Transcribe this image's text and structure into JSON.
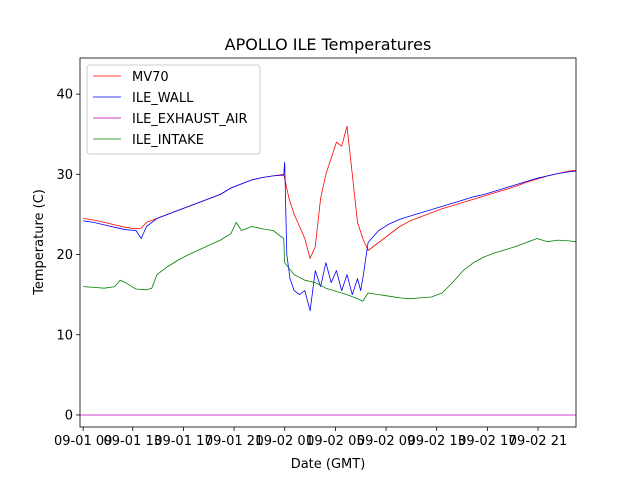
{
  "chart_data": {
    "type": "line",
    "title": "APOLLO ILE Temperatures",
    "xlabel": "Date (GMT)",
    "ylabel": "Temperature (C)",
    "ylim": [
      -1.5,
      44.5
    ],
    "xlim": [
      -0.3,
      46.7
    ],
    "yticks": [
      0,
      10,
      20,
      30,
      40
    ],
    "xticks": [
      {
        "pos": 0,
        "label": "09-01 09"
      },
      {
        "pos": 4.7,
        "label": "09-01 13"
      },
      {
        "pos": 9.5,
        "label": "09-01 17"
      },
      {
        "pos": 14.3,
        "label": "09-01 21"
      },
      {
        "pos": 19.1,
        "label": "09-02 01"
      },
      {
        "pos": 23.9,
        "label": "09-02 05"
      },
      {
        "pos": 28.7,
        "label": "09-02 09"
      },
      {
        "pos": 33.5,
        "label": "09-02 13"
      },
      {
        "pos": 38.3,
        "label": "09-02 17"
      },
      {
        "pos": 43.1,
        "label": "09-02 21"
      }
    ],
    "legend_position": "top-left",
    "x_unit": "hours since 09-01 09:00",
    "series": [
      {
        "name": "MV70",
        "color": "#ff0000",
        "x": [
          0,
          1,
          2,
          3,
          4,
          5,
          5.5,
          6,
          7,
          8,
          9,
          10,
          11,
          12,
          13,
          14,
          15,
          16,
          17,
          18,
          19,
          19.5,
          20,
          21,
          21.5,
          22,
          22.5,
          23,
          23.5,
          24,
          24.5,
          25,
          25.5,
          26,
          26.5,
          27,
          28,
          29,
          30,
          31,
          32,
          33,
          34,
          35,
          36,
          37,
          38,
          39,
          40,
          41,
          42,
          43,
          44,
          45,
          46,
          46.7
        ],
        "y": [
          24.5,
          24.3,
          24.0,
          23.7,
          23.4,
          23.2,
          23.3,
          24.0,
          24.5,
          25.0,
          25.5,
          26.0,
          26.5,
          27.0,
          27.5,
          28.3,
          28.8,
          29.3,
          29.6,
          29.8,
          30.0,
          27.0,
          25.0,
          22.0,
          19.5,
          21.0,
          27.0,
          30.0,
          32.0,
          34.0,
          33.5,
          36.0,
          30.0,
          24.0,
          22.0,
          20.5,
          21.5,
          22.5,
          23.5,
          24.2,
          24.7,
          25.2,
          25.7,
          26.1,
          26.5,
          26.9,
          27.3,
          27.7,
          28.1,
          28.5,
          29.0,
          29.4,
          29.8,
          30.1,
          30.4,
          30.5
        ]
      },
      {
        "name": "ILE_WALL",
        "color": "#0000ff",
        "x": [
          0,
          1,
          2,
          3,
          4,
          5,
          5.5,
          6,
          7,
          8,
          9,
          10,
          11,
          12,
          13,
          14,
          15,
          16,
          17,
          18,
          19,
          19.1,
          19.3,
          19.6,
          20,
          20.5,
          21,
          21.5,
          22,
          22.5,
          23,
          23.5,
          24,
          24.5,
          25,
          25.5,
          26,
          26.3,
          26.5,
          27,
          28,
          29,
          30,
          31,
          32,
          33,
          34,
          35,
          36,
          37,
          38,
          39,
          40,
          41,
          42,
          43,
          44,
          45,
          46,
          46.7
        ],
        "y": [
          24.2,
          24.0,
          23.7,
          23.4,
          23.1,
          23.0,
          22.0,
          23.5,
          24.5,
          25.0,
          25.5,
          26.0,
          26.5,
          27.0,
          27.5,
          28.3,
          28.8,
          29.3,
          29.6,
          29.8,
          29.9,
          31.5,
          20.0,
          17.0,
          15.5,
          15.0,
          15.5,
          13.0,
          18.0,
          16.0,
          19.0,
          16.5,
          18.0,
          15.5,
          17.5,
          15.0,
          17.0,
          15.5,
          17.0,
          21.5,
          23.0,
          23.8,
          24.4,
          24.8,
          25.2,
          25.6,
          26.0,
          26.4,
          26.8,
          27.2,
          27.5,
          27.9,
          28.3,
          28.7,
          29.1,
          29.5,
          29.8,
          30.1,
          30.3,
          30.4
        ]
      },
      {
        "name": "ILE_EXHAUST_AIR",
        "color": "#bf00bf",
        "x": [
          -0.3,
          46.7
        ],
        "y": [
          0,
          0
        ]
      },
      {
        "name": "ILE_INTAKE",
        "color": "#008000",
        "x": [
          0,
          1,
          2,
          3,
          3.5,
          4,
          5,
          6,
          6.5,
          7,
          8,
          9,
          10,
          11,
          12,
          13,
          14,
          14.5,
          15,
          16,
          17,
          18,
          19,
          19.1,
          19.5,
          20,
          21,
          22,
          23,
          24,
          25,
          26,
          26.5,
          27,
          28,
          29,
          30,
          31,
          32,
          33,
          34,
          35,
          36,
          37,
          38,
          39,
          40,
          41,
          42,
          43,
          44,
          45,
          46,
          46.7
        ],
        "y": [
          16.0,
          15.9,
          15.8,
          16.0,
          16.8,
          16.5,
          15.7,
          15.6,
          15.8,
          17.5,
          18.5,
          19.3,
          20.0,
          20.6,
          21.2,
          21.8,
          22.6,
          24.0,
          23.0,
          23.5,
          23.2,
          23.0,
          22.0,
          19.0,
          18.3,
          17.5,
          16.8,
          16.5,
          15.8,
          15.4,
          15.0,
          14.5,
          14.2,
          15.2,
          15.0,
          14.8,
          14.6,
          14.5,
          14.6,
          14.7,
          15.2,
          16.5,
          18.0,
          19.0,
          19.7,
          20.2,
          20.6,
          21.0,
          21.5,
          22.0,
          21.6,
          21.8,
          21.7,
          21.6
        ]
      }
    ]
  }
}
